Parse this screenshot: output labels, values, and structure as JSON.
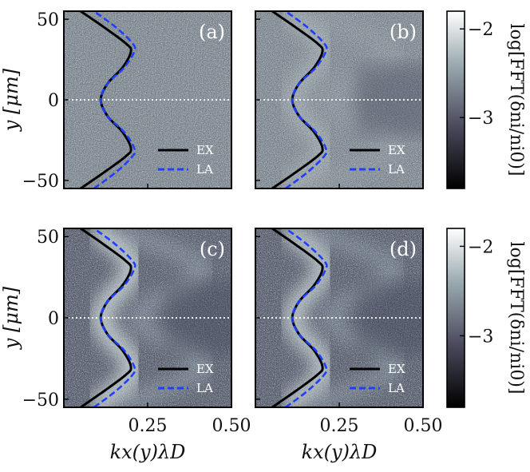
{
  "chart_data": [
    {
      "type": "heatmap",
      "panel_label": "(a)",
      "xlabel": "",
      "ylabel": "y [μm]",
      "xlim": [
        0.0,
        0.5
      ],
      "ylim": [
        -55,
        55
      ],
      "xticks": [
        0.25,
        0.5
      ],
      "yticks": [
        -50,
        0,
        50
      ],
      "reference_line_y": 0,
      "colormap": "bone",
      "series": [
        {
          "name": "EX",
          "style": "solid",
          "color": "#000000",
          "y": [
            -55,
            -45,
            -35,
            -30,
            -20,
            -10,
            0,
            10,
            20,
            30,
            35,
            45,
            55
          ],
          "x": [
            0.05,
            0.12,
            0.185,
            0.2,
            0.175,
            0.13,
            0.11,
            0.13,
            0.175,
            0.2,
            0.185,
            0.12,
            0.05
          ]
        },
        {
          "name": "LA",
          "style": "dashed",
          "color": "#1f3fff",
          "y": [
            -55,
            -45,
            -35,
            -30,
            -20,
            -10,
            0,
            10,
            20,
            30,
            35,
            45,
            55
          ],
          "x": [
            0.09,
            0.155,
            0.205,
            0.21,
            0.18,
            0.13,
            0.11,
            0.13,
            0.18,
            0.21,
            0.205,
            0.155,
            0.09
          ]
        }
      ],
      "legend_position": "lower-right"
    },
    {
      "type": "heatmap",
      "panel_label": "(b)",
      "xlabel": "",
      "ylabel": "",
      "xlim": [
        0.0,
        0.5
      ],
      "ylim": [
        -55,
        55
      ],
      "xticks": [
        0.25,
        0.5
      ],
      "yticks": [
        -50,
        0,
        50
      ],
      "reference_line_y": 0,
      "colormap": "bone",
      "series": [
        {
          "name": "EX",
          "style": "solid",
          "color": "#000000",
          "y": [
            -55,
            -45,
            -35,
            -30,
            -20,
            -10,
            0,
            10,
            20,
            30,
            35,
            45,
            55
          ],
          "x": [
            0.05,
            0.12,
            0.185,
            0.2,
            0.175,
            0.13,
            0.11,
            0.13,
            0.175,
            0.2,
            0.185,
            0.12,
            0.05
          ]
        },
        {
          "name": "LA",
          "style": "dashed",
          "color": "#1f3fff",
          "y": [
            -55,
            -45,
            -35,
            -30,
            -20,
            -10,
            0,
            10,
            20,
            30,
            35,
            45,
            55
          ],
          "x": [
            0.09,
            0.155,
            0.205,
            0.21,
            0.18,
            0.13,
            0.11,
            0.13,
            0.18,
            0.21,
            0.205,
            0.155,
            0.09
          ]
        }
      ],
      "legend_position": "lower-right"
    },
    {
      "type": "heatmap",
      "panel_label": "(c)",
      "xlabel": "kx(y)λD",
      "ylabel": "y [μm]",
      "xlim": [
        0.0,
        0.5
      ],
      "ylim": [
        -55,
        55
      ],
      "xticks": [
        0.25,
        0.5
      ],
      "yticks": [
        -50,
        0,
        50
      ],
      "reference_line_y": 0,
      "colormap": "bone",
      "series": [
        {
          "name": "EX",
          "style": "solid",
          "color": "#000000",
          "y": [
            -55,
            -45,
            -35,
            -30,
            -20,
            -10,
            0,
            10,
            20,
            30,
            35,
            45,
            55
          ],
          "x": [
            0.05,
            0.12,
            0.185,
            0.2,
            0.175,
            0.13,
            0.11,
            0.13,
            0.175,
            0.2,
            0.185,
            0.12,
            0.05
          ]
        },
        {
          "name": "LA",
          "style": "dashed",
          "color": "#1f3fff",
          "y": [
            -55,
            -45,
            -35,
            -30,
            -20,
            -10,
            0,
            10,
            20,
            30,
            35,
            45,
            55
          ],
          "x": [
            0.09,
            0.155,
            0.205,
            0.21,
            0.18,
            0.13,
            0.11,
            0.13,
            0.18,
            0.21,
            0.205,
            0.155,
            0.09
          ]
        }
      ],
      "legend_position": "lower-right"
    },
    {
      "type": "heatmap",
      "panel_label": "(d)",
      "xlabel": "kx(y)λD",
      "ylabel": "",
      "xlim": [
        0.0,
        0.5
      ],
      "ylim": [
        -55,
        55
      ],
      "xticks": [
        0.25,
        0.5
      ],
      "yticks": [
        -50,
        0,
        50
      ],
      "reference_line_y": 0,
      "colormap": "bone",
      "series": [
        {
          "name": "EX",
          "style": "solid",
          "color": "#000000",
          "y": [
            -55,
            -45,
            -35,
            -30,
            -20,
            -10,
            0,
            10,
            20,
            30,
            35,
            45,
            55
          ],
          "x": [
            0.05,
            0.12,
            0.185,
            0.2,
            0.175,
            0.13,
            0.11,
            0.13,
            0.175,
            0.2,
            0.185,
            0.12,
            0.05
          ]
        },
        {
          "name": "LA",
          "style": "dashed",
          "color": "#1f3fff",
          "y": [
            -55,
            -45,
            -35,
            -30,
            -20,
            -10,
            0,
            10,
            20,
            30,
            35,
            45,
            55
          ],
          "x": [
            0.09,
            0.155,
            0.205,
            0.21,
            0.18,
            0.13,
            0.11,
            0.13,
            0.18,
            0.21,
            0.205,
            0.155,
            0.09
          ]
        }
      ],
      "legend_position": "lower-right"
    }
  ],
  "colorbars": [
    {
      "title": "log[FFT(δni/ni0)]",
      "ticks": [
        -2,
        -3
      ],
      "range": [
        -3.8,
        -1.8
      ]
    },
    {
      "title": "log[FFT(δni/ni0)]",
      "ticks": [
        -2,
        -3
      ],
      "range": [
        -3.8,
        -1.8
      ]
    }
  ],
  "tick_labels": {
    "x": [
      "0.25",
      "0.50"
    ],
    "y": [
      "50",
      "0",
      "−50"
    ],
    "cbar": [
      "−2",
      "−3"
    ]
  },
  "colors": {
    "ex_line": "#000000",
    "la_line": "#1f3fff",
    "reference_line": "#ffffff"
  }
}
